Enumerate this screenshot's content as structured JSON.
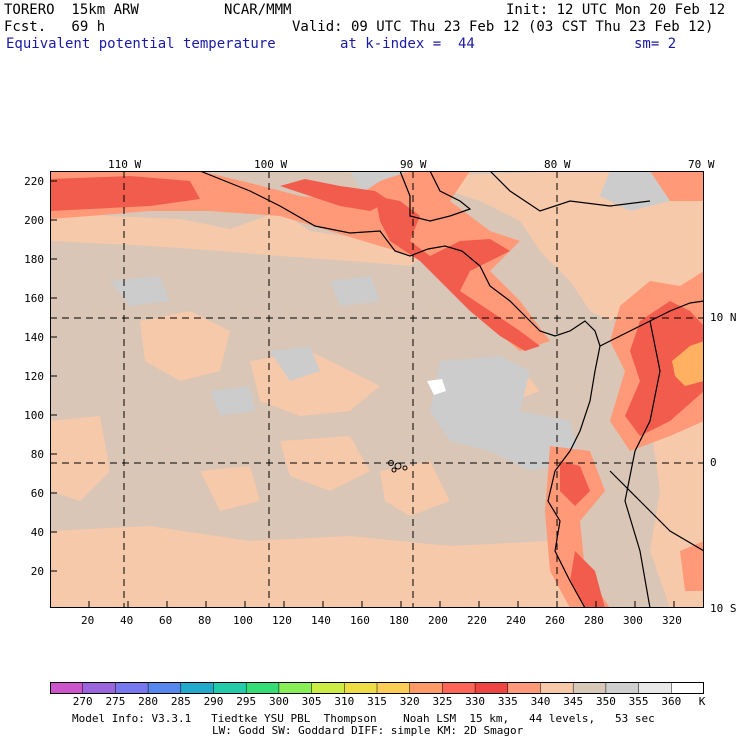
{
  "header": {
    "model": "TORERO  15km ARW",
    "org": "NCAR/MMM",
    "init": "Init: 12 UTC Mon 20 Feb 12",
    "fcst": "Fcst.   69 h",
    "valid": "Valid: 09 UTC Thu 23 Feb 12 (03 CST Thu 23 Feb 12)",
    "field": "Equivalent potential temperature",
    "level": "at k-index =  44",
    "smooth": "sm= 2"
  },
  "axes": {
    "top_lon_labels": [
      "110 W",
      "100 W",
      "90 W",
      "80 W",
      "70 W"
    ],
    "left_grid_labels": [
      "220",
      "200",
      "180",
      "160",
      "140",
      "120",
      "100",
      "80",
      "60",
      "40",
      "20"
    ],
    "bottom_grid_labels": [
      "20",
      "40",
      "60",
      "80",
      "100",
      "120",
      "140",
      "160",
      "180",
      "200",
      "220",
      "240",
      "260",
      "280",
      "300",
      "320"
    ],
    "right_lat_labels": [
      "10 N",
      "0",
      "10 S"
    ]
  },
  "colorbar": {
    "unit": "K",
    "levels": [
      "270",
      "275",
      "280",
      "285",
      "290",
      "295",
      "300",
      "305",
      "310",
      "315",
      "320",
      "325",
      "330",
      "335",
      "340",
      "345",
      "350",
      "355",
      "360"
    ],
    "colors": [
      "#cc55cc",
      "#9966dd",
      "#7777ee",
      "#5588ee",
      "#22aacc",
      "#22ccaa",
      "#33dd77",
      "#88ee55",
      "#ccee44",
      "#eedd44",
      "#ffcc55",
      "#ff9966",
      "#ff6655",
      "#ee4444",
      "#ff9977",
      "#f5c8a8",
      "#d8c8b8",
      "#cfcfcf",
      "#e8e8e8",
      "#ffffff"
    ]
  },
  "map_colors": {
    "base": "#d9c6b6",
    "warm": "#f5c9aa",
    "cool": "#cccccc",
    "hot": "#ff9977",
    "hotter": "#f25c4d",
    "hottest": "#ffb060",
    "white": "#ffffff"
  },
  "footer": {
    "line1": "Model Info: V3.3.1   Tiedtke YSU PBL  Thompson    Noah LSM  15 km,   44 levels,   53 sec",
    "line2": "LW: Godd SW: Goddard DIFF: simple KM: 2D Smagor"
  }
}
